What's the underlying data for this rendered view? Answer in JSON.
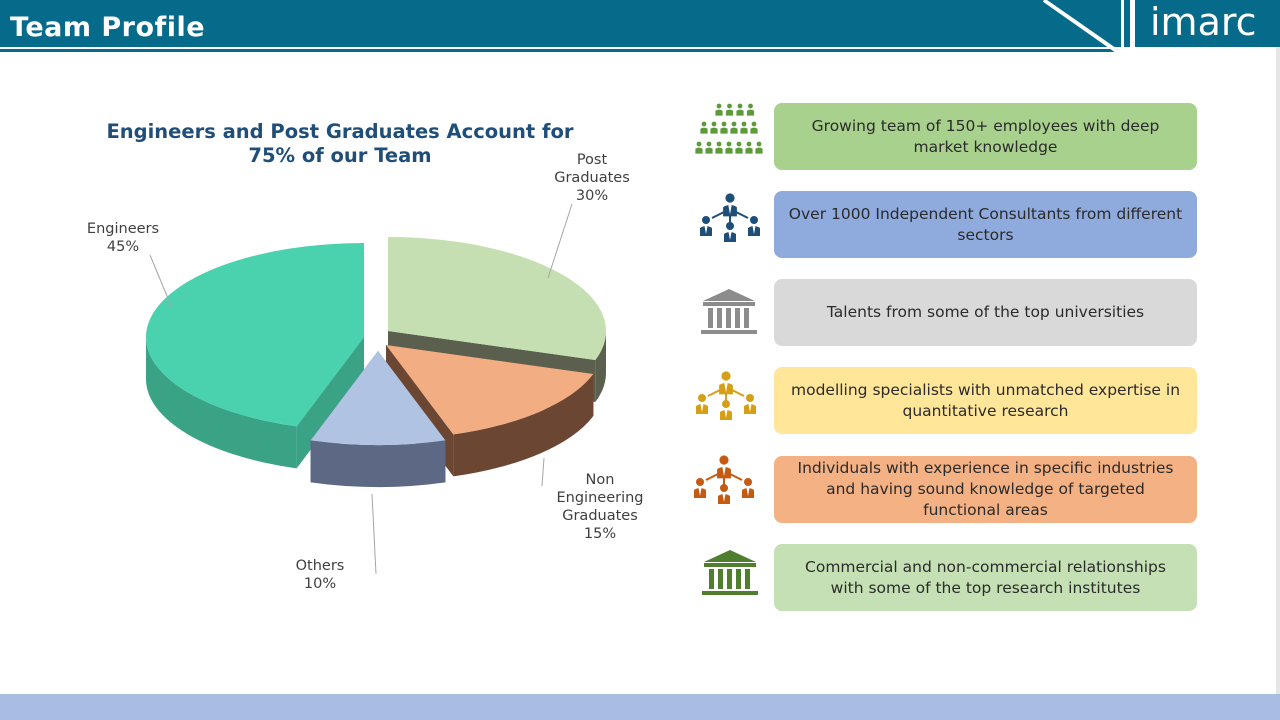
{
  "header": {
    "title": "Team Profile",
    "logo": "imarc",
    "bar_color": "#066a8b"
  },
  "chart_data": {
    "type": "pie",
    "title": "Engineers and Post Graduates Account for 75% of our Team",
    "slices": [
      {
        "label_lines": [
          "Post",
          "Graduates"
        ],
        "value": 30,
        "display": "30%",
        "color": "#c5dfb2",
        "side_color": "#5a5f4e",
        "icon": "none"
      },
      {
        "label_lines": [
          "Non",
          "Engineering",
          "Graduates"
        ],
        "value": 15,
        "display": "15%",
        "color": "#f2ad82",
        "side_color": "#6b4632",
        "icon": "none"
      },
      {
        "label_lines": [
          "Others"
        ],
        "value": 10,
        "display": "10%",
        "color": "#b0c3e2",
        "side_color": "#5d6884",
        "icon": "none"
      },
      {
        "label_lines": [
          "Engineers"
        ],
        "value": 45,
        "display": "45%",
        "color": "#4ad1ae",
        "side_color": "#3aa386",
        "icon": "none"
      }
    ],
    "style": "3d-exploded"
  },
  "features": [
    {
      "text": "Growing team of 150+ employees with deep market knowledge",
      "color": "#a9d18e",
      "icon": "crowd-icon",
      "icon_color": "#5d9b3a"
    },
    {
      "text": "Over 1000 Independent Consultants from different sectors",
      "color": "#8faadc",
      "icon": "consultants-network-icon",
      "icon_color": "#1f4e79"
    },
    {
      "text": "Talents from some of the top universities",
      "color": "#d9d9d9",
      "icon": "university-building-icon",
      "icon_color": "#8c8c8c"
    },
    {
      "text": "modelling specialists with unmatched expertise in quantitative research",
      "color": "#ffe699",
      "icon": "specialists-network-icon",
      "icon_color": "#d4a017"
    },
    {
      "text": "Individuals with experience in specific industries and having sound knowledge of targeted functional areas",
      "color": "#f4b183",
      "icon": "industry-experts-network-icon",
      "icon_color": "#c55a11"
    },
    {
      "text": "Commercial and non-commercial relationships with some of the top research institutes",
      "color": "#c5e0b4",
      "icon": "research-institute-icon",
      "icon_color": "#4f7f2e"
    }
  ]
}
